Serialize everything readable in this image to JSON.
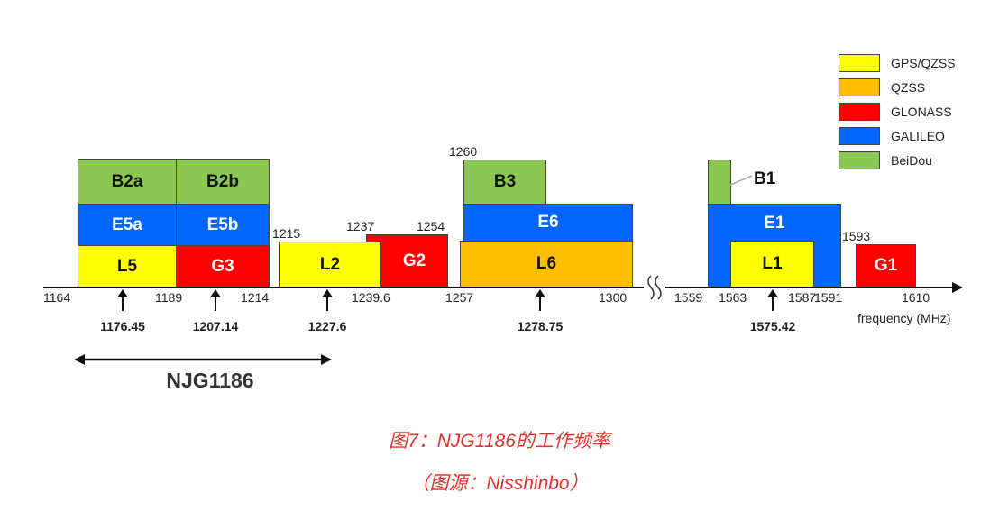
{
  "legend": [
    {
      "label": "GPS/QZSS",
      "color": "#ffff00"
    },
    {
      "label": "QZSS",
      "color": "#ffbf00"
    },
    {
      "label": "GLONASS",
      "color": "#ff0000"
    },
    {
      "label": "GALILEO",
      "color": "#0066ff"
    },
    {
      "label": "BeiDou",
      "color": "#8cc653"
    }
  ],
  "bands": {
    "B2a": "B2a",
    "B2b": "B2b",
    "E5a": "E5a",
    "E5b": "E5b",
    "L5": "L5",
    "G3": "G3",
    "L2": "L2",
    "G2": "G2",
    "B3": "B3",
    "E6": "E6",
    "L6": "L6",
    "B1": "B1",
    "E1": "E1",
    "L1": "L1",
    "G1": "G1"
  },
  "freq_labels": [
    "1164",
    "1189",
    "1214",
    "1215",
    "1237",
    "1254",
    "1239.6",
    "1257",
    "1260",
    "1300",
    "1559",
    "1563",
    "1587",
    "1591",
    "1593",
    "1610"
  ],
  "center_freqs": [
    "1176.45",
    "1207.14",
    "1227.6",
    "1278.75",
    "1575.42"
  ],
  "axis_label": "frequency (MHz)",
  "coverage_label": "NJG1186",
  "caption": {
    "title": "图7：NJG1186的工作频率",
    "source": "（图源：Nisshinbo）"
  }
}
